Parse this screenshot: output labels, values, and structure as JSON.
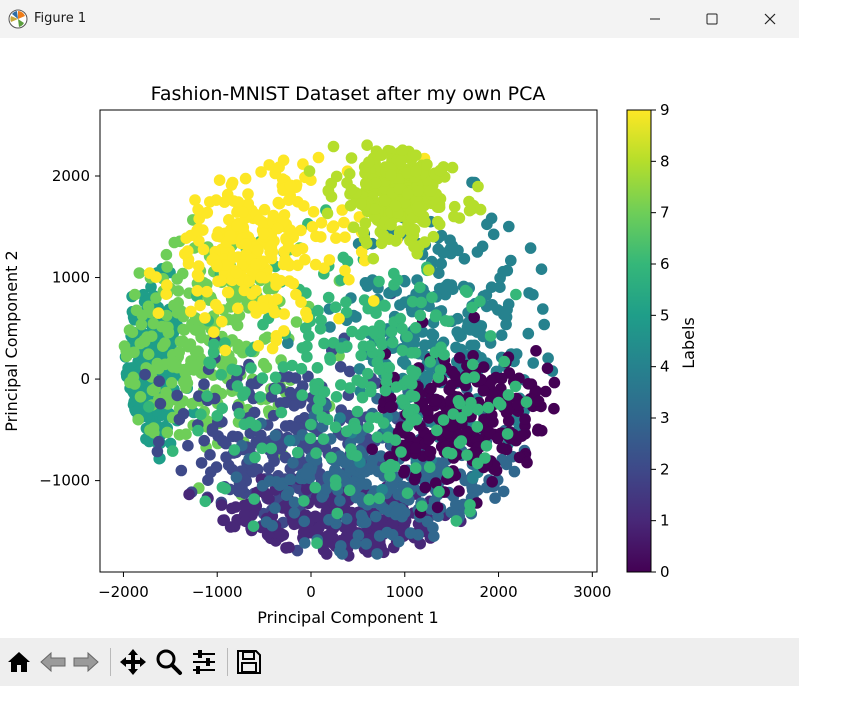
{
  "window": {
    "title": "Figure 1",
    "app_icon": "matplotlib-icon",
    "controls": [
      "minimize-icon",
      "maximize-icon",
      "close-icon"
    ]
  },
  "toolbar": {
    "items": [
      "home-icon",
      "back-icon",
      "forward-icon",
      "pan-icon",
      "zoom-icon",
      "configure-subplots-icon",
      "save-icon"
    ]
  },
  "chart_data": {
    "type": "scatter",
    "title": "Fashion-MNIST Dataset after my own PCA",
    "xlabel": "Principal Component 1",
    "ylabel": "Principal Component 2",
    "xlim": [
      -2250,
      3050
    ],
    "ylim": [
      -1900,
      2650
    ],
    "xticks": [
      -2000,
      -1000,
      0,
      1000,
      2000,
      3000
    ],
    "xtick_labels": [
      "−2000",
      "−1000",
      "0",
      "1000",
      "2000",
      "3000"
    ],
    "yticks": [
      -1000,
      0,
      1000,
      2000
    ],
    "ytick_labels": [
      "−1000",
      "0",
      "1000",
      "2000"
    ],
    "grid": false,
    "colormap": "viridis",
    "colorbar": {
      "label": "Labels",
      "range": [
        0,
        9
      ],
      "ticks": [
        0,
        1,
        2,
        3,
        4,
        5,
        6,
        7,
        8,
        9
      ],
      "tick_labels": [
        "0",
        "1",
        "2",
        "3",
        "4",
        "5",
        "6",
        "7",
        "8",
        "9"
      ]
    },
    "series_by_label": [
      {
        "label": 0,
        "color": "#440154",
        "cx": 1700,
        "cy": -400,
        "sx": 450,
        "sy": 350
      },
      {
        "label": 1,
        "color": "#482878",
        "cx": 300,
        "cy": -1400,
        "sx": 700,
        "sy": 200
      },
      {
        "label": 2,
        "color": "#3e4989",
        "cx": -300,
        "cy": -700,
        "sx": 700,
        "sy": 450
      },
      {
        "label": 3,
        "color": "#31688e",
        "cx": 900,
        "cy": -1000,
        "sx": 700,
        "sy": 350
      },
      {
        "label": 4,
        "color": "#26828e",
        "cx": 1400,
        "cy": 500,
        "sx": 550,
        "sy": 600
      },
      {
        "label": 5,
        "color": "#1f9e89",
        "cx": -1750,
        "cy": 0,
        "sx": 180,
        "sy": 450
      },
      {
        "label": 6,
        "color": "#35b779",
        "cx": 600,
        "cy": 0,
        "sx": 1000,
        "sy": 700
      },
      {
        "label": 7,
        "color": "#6ece58",
        "cx": -1200,
        "cy": 300,
        "sx": 500,
        "sy": 500
      },
      {
        "label": 8,
        "color": "#b5de2b",
        "cx": 950,
        "cy": 1850,
        "sx": 350,
        "sy": 250
      },
      {
        "label": 9,
        "color": "#fde725",
        "cx": -600,
        "cy": 1300,
        "sx": 500,
        "sy": 400
      }
    ]
  }
}
